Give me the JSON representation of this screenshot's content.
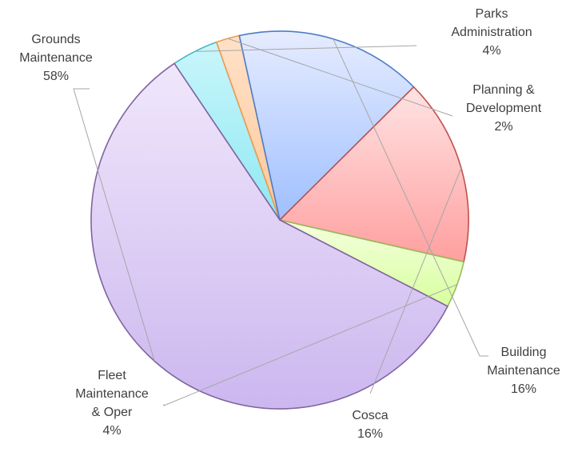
{
  "chart_data": {
    "type": "pie",
    "title": "",
    "slices": [
      {
        "name": "Parks Administration",
        "label_lines": [
          "Parks",
          "Administration",
          "4%"
        ],
        "value": 4,
        "fill_start": "#c9f6fb",
        "fill_end": "#8fe8f2",
        "stroke": "#4bb6c8"
      },
      {
        "name": "Planning & Development",
        "label_lines": [
          "Planning &",
          "Development",
          "2%"
        ],
        "value": 2,
        "fill_start": "#ffe1c8",
        "fill_end": "#ffc89a",
        "stroke": "#f19b4b"
      },
      {
        "name": "Building Maintenance",
        "label_lines": [
          "Building",
          "Maintenance",
          "16%"
        ],
        "value": 16,
        "fill_start": "#e6ecff",
        "fill_end": "#9fbfff",
        "stroke": "#4d7cc7"
      },
      {
        "name": "Cosca",
        "label_lines": [
          "Cosca",
          "16%"
        ],
        "value": 16,
        "fill_start": "#ffe3e3",
        "fill_end": "#ff9f9f",
        "stroke": "#c0504d"
      },
      {
        "name": "Fleet Maintenance & Oper",
        "label_lines": [
          "Fleet",
          "Maintenance",
          "& Oper",
          "4%"
        ],
        "value": 4,
        "fill_start": "#f4ffdf",
        "fill_end": "#d8ff9e",
        "stroke": "#9bbb59"
      },
      {
        "name": "Grounds Maintenance",
        "label_lines": [
          "Grounds",
          "Maintenance",
          "58%"
        ],
        "value": 58,
        "fill_start": "#f0e7fb",
        "fill_end": "#ccb7ef",
        "stroke": "#8064a2"
      }
    ]
  }
}
